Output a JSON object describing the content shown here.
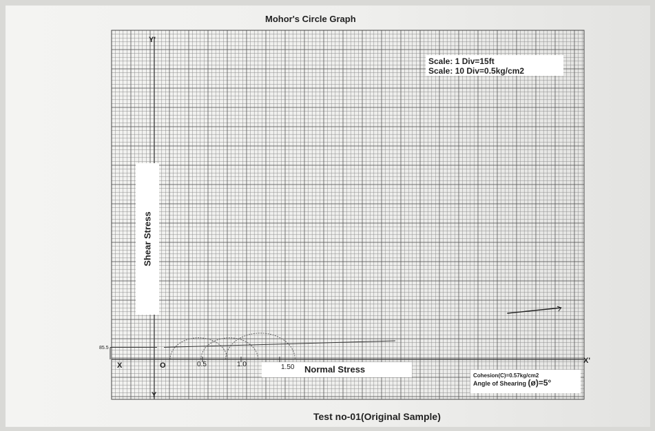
{
  "title": "Mohor's Circle Graph",
  "footer": "Test no-01(Original Sample)",
  "scale_lines": [
    "Scale: 1 Div=15ft",
    "Scale: 10 Div=0.5kg/cm2"
  ],
  "info": {
    "cohesion": "Cohesion(C)=0.57kg/cm2",
    "angle_prefix": "Angle of Shearing ",
    "angle_symbol": "(ø)",
    "angle_value": "=5°"
  },
  "axes": {
    "x_left": "X",
    "x_right": "X'",
    "y_top": "Y'",
    "y_bottom": "Y",
    "origin": "O",
    "intercept": "85.5"
  },
  "chart_data": {
    "type": "scatter",
    "title": "Mohor's Circle Graph",
    "xlabel": "Normal Stress",
    "ylabel": "Shear Stress",
    "x_ticks": [
      "0.5",
      "1.0",
      "1.50"
    ],
    "circles": [
      {
        "center": 0.45,
        "radius": 0.37
      },
      {
        "center": 0.85,
        "radius": 0.37
      },
      {
        "center": 1.25,
        "radius": 0.45
      }
    ],
    "envelope": {
      "cohesion": 0.57,
      "angle_deg": 5
    },
    "grid": true
  }
}
